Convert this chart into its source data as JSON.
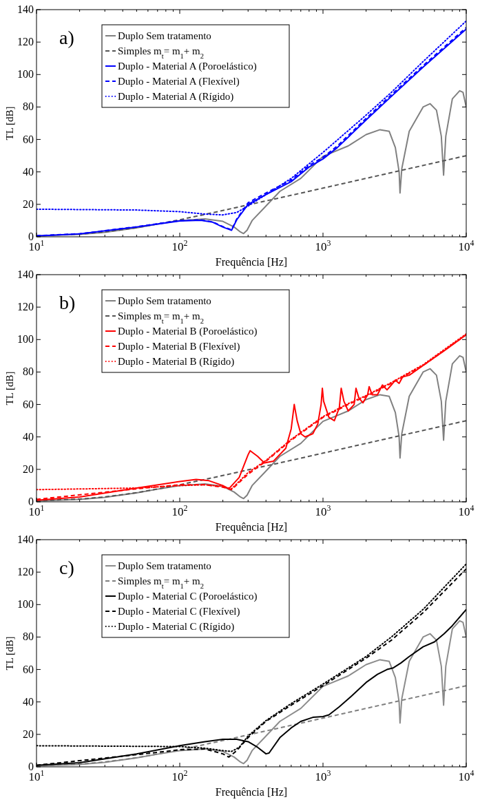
{
  "chart_data": [
    {
      "type": "line",
      "xlabel": "Frequência [Hz]",
      "ylabel": "TL [dB]",
      "log": "x",
      "legend": "top left",
      "annotations": [
        "a)"
      ],
      "xlim": [
        10,
        10000
      ],
      "ylim": [
        0,
        140
      ],
      "yticks": [
        0,
        20,
        40,
        60,
        80,
        100,
        120,
        140
      ],
      "xticks": [
        {
          "value": 10,
          "label": "10$^{1}$"
        },
        {
          "value": 20,
          "label": null
        },
        {
          "value": 30,
          "label": null
        },
        {
          "value": 40,
          "label": null
        },
        {
          "value": 50,
          "label": null
        },
        {
          "value": 60,
          "label": null
        },
        {
          "value": 70,
          "label": null
        },
        {
          "value": 80,
          "label": null
        },
        {
          "value": 90,
          "label": null
        },
        {
          "value": 100,
          "label": "10$^{2}$"
        },
        {
          "value": 200,
          "label": null
        },
        {
          "value": 300,
          "label": null
        },
        {
          "value": 400,
          "label": null
        },
        {
          "value": 500,
          "label": null
        },
        {
          "value": 600,
          "label": null
        },
        {
          "value": 700,
          "label": null
        },
        {
          "value": 800,
          "label": null
        },
        {
          "value": 900,
          "label": null
        },
        {
          "value": 1000,
          "label": "10$^{3}$"
        },
        {
          "value": 2000,
          "label": null
        },
        {
          "value": 3000,
          "label": null
        },
        {
          "value": 4000,
          "label": null
        },
        {
          "value": 5000,
          "label": null
        },
        {
          "value": 6000,
          "label": null
        },
        {
          "value": 7000,
          "label": null
        },
        {
          "value": 8000,
          "label": null
        },
        {
          "value": 9000,
          "label": null
        },
        {
          "value": 10000,
          "label": "10$^{4}$"
        }
      ],
      "series": [
        {
          "name": "Duplo Sem tratamento",
          "color": "#808080",
          "line_style": "solid",
          "x": [
            10,
            20,
            30,
            50,
            70,
            100,
            150,
            200,
            240,
            265,
            279,
            295,
            320,
            400,
            500,
            700,
            1000,
            1500,
            2000,
            2500,
            2900,
            3200,
            3400,
            3450,
            3550,
            4000,
            5000,
            5600,
            6200,
            6700,
            6950,
            7200,
            8000,
            9000,
            9500,
            10000
          ],
          "values": [
            0.5,
            1.5,
            2.8,
            5.5,
            7.8,
            10,
            11,
            9.5,
            6,
            3,
            2,
            4,
            10,
            19,
            28,
            36,
            49.6,
            56,
            63,
            66,
            65,
            55,
            40,
            27,
            42,
            65,
            80,
            82,
            78,
            62,
            38,
            62,
            85,
            90,
            89,
            80
          ]
        },
        {
          "name": "Simples m$_{t}$= m$_{1}$+ m$_{2}$",
          "color": "#555555",
          "line_style": "dashed",
          "x": [
            10,
            20,
            30,
            50,
            70,
            100,
            150,
            200,
            300,
            500,
            1000,
            10000
          ],
          "values": [
            0.6,
            1.7,
            3,
            5.6,
            7.9,
            10.5,
            13.8,
            16.2,
            19.7,
            24,
            30,
            50
          ]
        },
        {
          "name": "Duplo - Material A (Poroelástico)",
          "color": "#0000ff",
          "line_style": "solid",
          "x": [
            10,
            20,
            50,
            100,
            140,
            170,
            200,
            230,
            250,
            300,
            400,
            600,
            800,
            1000,
            1260,
            2000,
            3000,
            5000,
            10000
          ],
          "values": [
            0.5,
            1.8,
            6,
            9.8,
            10.2,
            9,
            6,
            4,
            10.5,
            20,
            26,
            34,
            43,
            48,
            55,
            72,
            86.5,
            104.6,
            128
          ]
        },
        {
          "name": "Duplo - Material A (Flexível)",
          "color": "#0000ff",
          "line_style": "dashed",
          "x": [
            10,
            20,
            50,
            100,
            140,
            170,
            200,
            230,
            250,
            300,
            400,
            600,
            800,
            1000,
            1260,
            2000,
            3000,
            5000,
            10000
          ],
          "values": [
            0.6,
            1.9,
            6.2,
            10,
            10.4,
            9.2,
            6.3,
            4.3,
            11,
            21,
            27,
            35,
            44,
            49,
            56,
            73,
            87.5,
            105.5,
            129
          ]
        },
        {
          "name": "Duplo - Material A (Rígido)",
          "color": "#0000ff",
          "line_style": "dotted",
          "x": [
            10,
            50,
            100,
            150,
            200,
            250,
            300,
            400,
            600,
            1000,
            2000,
            3000,
            5000,
            10000
          ],
          "values": [
            17,
            16.5,
            15.5,
            14,
            13.5,
            15,
            19,
            26,
            36,
            52,
            75,
            89,
            108,
            133
          ]
        }
      ]
    },
    {
      "type": "line",
      "xlabel": "Frequência [Hz]",
      "ylabel": "TL [dB]",
      "log": "x",
      "legend": "top left",
      "annotations": [
        "b)"
      ],
      "xlim": [
        10,
        10000
      ],
      "ylim": [
        0,
        140
      ],
      "yticks": [
        0,
        20,
        40,
        60,
        80,
        100,
        120,
        140
      ],
      "xticks": [
        {
          "value": 10,
          "label": "10$^{1}$"
        },
        {
          "value": 20,
          "label": null
        },
        {
          "value": 30,
          "label": null
        },
        {
          "value": 40,
          "label": null
        },
        {
          "value": 50,
          "label": null
        },
        {
          "value": 60,
          "label": null
        },
        {
          "value": 70,
          "label": null
        },
        {
          "value": 80,
          "label": null
        },
        {
          "value": 90,
          "label": null
        },
        {
          "value": 100,
          "label": "10$^{2}$"
        },
        {
          "value": 200,
          "label": null
        },
        {
          "value": 300,
          "label": null
        },
        {
          "value": 400,
          "label": null
        },
        {
          "value": 500,
          "label": null
        },
        {
          "value": 600,
          "label": null
        },
        {
          "value": 700,
          "label": null
        },
        {
          "value": 800,
          "label": null
        },
        {
          "value": 900,
          "label": null
        },
        {
          "value": 1000,
          "label": "10$^{3}$"
        },
        {
          "value": 2000,
          "label": null
        },
        {
          "value": 3000,
          "label": null
        },
        {
          "value": 4000,
          "label": null
        },
        {
          "value": 5000,
          "label": null
        },
        {
          "value": 6000,
          "label": null
        },
        {
          "value": 7000,
          "label": null
        },
        {
          "value": 8000,
          "label": null
        },
        {
          "value": 9000,
          "label": null
        },
        {
          "value": 10000,
          "label": "10$^{4}$"
        }
      ],
      "series": [
        {
          "name": "Duplo Sem tratamento",
          "color": "#808080",
          "line_style": "solid",
          "x": [
            10,
            20,
            30,
            50,
            70,
            100,
            150,
            200,
            240,
            265,
            279,
            295,
            320,
            400,
            500,
            700,
            1000,
            1500,
            2000,
            2500,
            2900,
            3200,
            3400,
            3450,
            3550,
            4000,
            5000,
            5600,
            6200,
            6700,
            6950,
            7200,
            8000,
            9000,
            9500,
            10000
          ],
          "values": [
            0.5,
            1.5,
            2.8,
            5.5,
            7.8,
            10,
            11,
            9.5,
            6,
            3,
            2,
            4,
            10,
            19,
            28,
            36,
            49.6,
            56,
            63,
            66,
            65,
            55,
            40,
            27,
            42,
            65,
            80,
            82,
            78,
            62,
            38,
            62,
            85,
            90,
            89,
            80
          ]
        },
        {
          "name": "Simples m$_{t}$= m$_{1}$+ m$_{2}$",
          "color": "#555555",
          "line_style": "dashed",
          "x": [
            10,
            20,
            30,
            50,
            70,
            100,
            150,
            200,
            300,
            500,
            1000,
            10000
          ],
          "values": [
            0.6,
            1.7,
            3,
            5.6,
            7.9,
            10.5,
            13.8,
            16.2,
            19.7,
            24,
            30,
            50
          ]
        },
        {
          "name": "Duplo - Material B (Poroelástico)",
          "color": "#ff0000",
          "line_style": "solid",
          "x": [
            10,
            20,
            50,
            100,
            130,
            160,
            200,
            220,
            260,
            300,
            310,
            350,
            390,
            450,
            550,
            600,
            630,
            660,
            700,
            750,
            850,
            920,
            970,
            990,
            1010,
            1100,
            1200,
            1300,
            1340,
            1400,
            1500,
            1650,
            1700,
            1780,
            1900,
            2050,
            2100,
            2200,
            2400,
            2600,
            2800,
            3000,
            3200,
            3400,
            3600,
            4000,
            5000,
            7000,
            10000
          ],
          "values": [
            1,
            3,
            8.5,
            12.5,
            13.8,
            13,
            10,
            8,
            15,
            29,
            31.5,
            28,
            24,
            25,
            33,
            45,
            60,
            50,
            42,
            40,
            42,
            48,
            60,
            70,
            62,
            52,
            50,
            58,
            70,
            62,
            56,
            60,
            70,
            64,
            61,
            66,
            71,
            66,
            66,
            72,
            69,
            72,
            75,
            73,
            77,
            78,
            84,
            93,
            103
          ]
        },
        {
          "name": "Duplo - Material B (Flexível)",
          "color": "#ff0000",
          "line_style": "dashed",
          "x": [
            10,
            50,
            100,
            150,
            200,
            230,
            300,
            400,
            600,
            1000,
            1500,
            2000,
            3000,
            5000,
            10000
          ],
          "values": [
            1.5,
            8,
            10.5,
            10.5,
            9,
            7.5,
            17,
            25,
            38,
            52,
            60,
            65,
            73,
            84,
            103
          ]
        },
        {
          "name": "Duplo - Material B (Rígido)",
          "color": "#ff0000",
          "line_style": "dotted",
          "x": [
            10,
            50,
            100,
            150,
            200,
            230,
            300,
            400,
            600,
            1000,
            1500,
            2000,
            3000,
            5000,
            10000
          ],
          "values": [
            7.5,
            8.5,
            10,
            10.5,
            9.5,
            8,
            18,
            25.5,
            38.5,
            52.5,
            60.5,
            65.5,
            73.5,
            84.5,
            103.5
          ]
        }
      ]
    },
    {
      "type": "line",
      "xlabel": "Frequência [Hz]",
      "ylabel": "TL [dB]",
      "log": "x",
      "legend": "top left",
      "annotations": [
        "c)"
      ],
      "xlim": [
        10,
        10000
      ],
      "ylim": [
        0,
        140
      ],
      "yticks": [
        0,
        20,
        40,
        60,
        80,
        100,
        120,
        140
      ],
      "xticks": [
        {
          "value": 10,
          "label": "10$^{1}$"
        },
        {
          "value": 20,
          "label": null
        },
        {
          "value": 30,
          "label": null
        },
        {
          "value": 40,
          "label": null
        },
        {
          "value": 50,
          "label": null
        },
        {
          "value": 60,
          "label": null
        },
        {
          "value": 70,
          "label": null
        },
        {
          "value": 80,
          "label": null
        },
        {
          "value": 90,
          "label": null
        },
        {
          "value": 100,
          "label": "10$^{2}$"
        },
        {
          "value": 200,
          "label": null
        },
        {
          "value": 300,
          "label": null
        },
        {
          "value": 400,
          "label": null
        },
        {
          "value": 500,
          "label": null
        },
        {
          "value": 600,
          "label": null
        },
        {
          "value": 700,
          "label": null
        },
        {
          "value": 800,
          "label": null
        },
        {
          "value": 900,
          "label": null
        },
        {
          "value": 1000,
          "label": "10$^{3}$"
        },
        {
          "value": 2000,
          "label": null
        },
        {
          "value": 3000,
          "label": null
        },
        {
          "value": 4000,
          "label": null
        },
        {
          "value": 5000,
          "label": null
        },
        {
          "value": 6000,
          "label": null
        },
        {
          "value": 7000,
          "label": null
        },
        {
          "value": 8000,
          "label": null
        },
        {
          "value": 9000,
          "label": null
        },
        {
          "value": 10000,
          "label": "10$^{4}$"
        }
      ],
      "series": [
        {
          "name": "Duplo Sem tratamento",
          "color": "#8c8c8c",
          "line_style": "solid",
          "x": [
            10,
            20,
            30,
            50,
            70,
            100,
            150,
            200,
            240,
            265,
            279,
            295,
            320,
            400,
            500,
            700,
            1000,
            1500,
            2000,
            2500,
            2900,
            3200,
            3400,
            3450,
            3550,
            4000,
            5000,
            5600,
            6200,
            6700,
            6950,
            7200,
            8000,
            9000,
            9500,
            10000
          ],
          "values": [
            0.5,
            1.5,
            2.8,
            5.5,
            7.8,
            10,
            11,
            9.5,
            6,
            3,
            2,
            4,
            10,
            19,
            28,
            36,
            49.6,
            56,
            63,
            66,
            65,
            55,
            40,
            27,
            42,
            65,
            80,
            82,
            78,
            62,
            38,
            62,
            85,
            90,
            89,
            80
          ]
        },
        {
          "name": "Simples m$_{t}$= m$_{1}$+ m$_{2}$",
          "color": "#7f7f7f",
          "line_style": "dashed",
          "x": [
            10,
            20,
            30,
            50,
            70,
            100,
            150,
            200,
            300,
            500,
            1000,
            10000
          ],
          "values": [
            0.6,
            1.7,
            3,
            5.6,
            7.9,
            10.5,
            13.8,
            16.2,
            19.7,
            24,
            30,
            50
          ]
        },
        {
          "name": "Duplo - Material C (Poroelástico)",
          "color": "#000000",
          "line_style": "solid",
          "x": [
            10,
            20,
            50,
            100,
            150,
            200,
            250,
            300,
            350,
            400,
            420,
            500,
            600,
            700,
            850,
            1000,
            1100,
            1300,
            1600,
            2000,
            2400,
            2800,
            3100,
            3500,
            4000,
            5000,
            6000,
            7000,
            8000,
            10000
          ],
          "values": [
            1,
            2.5,
            8,
            13,
            15.5,
            17,
            17,
            15.5,
            12,
            8,
            8.5,
            18,
            24,
            28,
            30.5,
            31,
            32,
            37,
            44,
            52,
            57,
            60,
            61,
            64,
            68,
            74,
            77,
            82,
            87,
            97
          ]
        },
        {
          "name": "Duplo - Material C (Flexível)",
          "color": "#000000",
          "line_style": "dashed",
          "x": [
            10,
            50,
            100,
            150,
            200,
            220,
            250,
            300,
            400,
            600,
            1000,
            2000,
            3000,
            5000,
            10000
          ],
          "values": [
            1,
            7.5,
            10.5,
            11,
            8,
            6,
            10,
            18,
            28,
            38,
            50,
            67,
            78,
            95,
            122
          ]
        },
        {
          "name": "Duplo - Material C (Rígido)",
          "color": "#000000",
          "line_style": "dotted",
          "x": [
            10,
            100,
            150,
            200,
            230,
            260,
            300,
            400,
            600,
            1000,
            2000,
            3000,
            5000,
            10000
          ],
          "values": [
            13,
            12.5,
            11.5,
            10,
            9.5,
            12,
            19,
            28.5,
            39,
            51,
            68,
            80,
            97,
            125
          ]
        }
      ]
    }
  ]
}
